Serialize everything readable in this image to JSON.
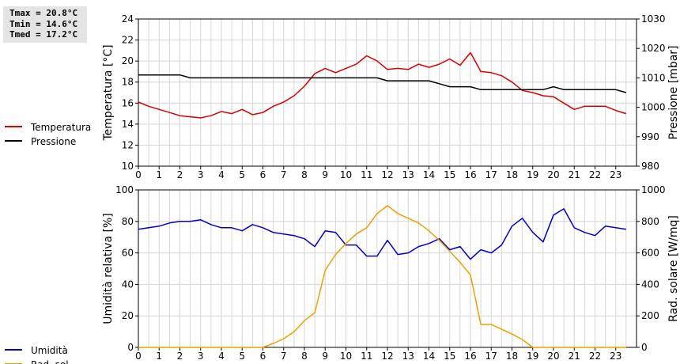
{
  "stats": {
    "tmax": "Tmax = 20.8°C",
    "tmin": "Tmin = 14.6°C",
    "tmed": "Tmed = 17.2°C"
  },
  "chart_data": [
    {
      "type": "line",
      "xlim": [
        0,
        24
      ],
      "x_ticks": [
        "0",
        "1",
        "2",
        "3",
        "4",
        "5",
        "6",
        "7",
        "8",
        "9",
        "10",
        "11",
        "12",
        "13",
        "14",
        "15",
        "16",
        "17",
        "18",
        "19",
        "20",
        "21",
        "22",
        "23"
      ],
      "ylabel": "Temperatura [°C]",
      "ylim": [
        10,
        24
      ],
      "y_ticks": [
        "10",
        "12",
        "14",
        "16",
        "18",
        "20",
        "22",
        "24"
      ],
      "ylabel_right": "Pressione [mbar]",
      "ylim_right": [
        980,
        1030
      ],
      "y_ticks_right": [
        "980",
        "990",
        "1000",
        "1010",
        "1020",
        "1030"
      ],
      "grid": true,
      "legend": "left",
      "series": [
        {
          "name": "Temperatura",
          "axis": "left",
          "color": "#dd0000",
          "x": [
            0,
            0.5,
            1,
            1.5,
            2,
            2.5,
            3,
            3.5,
            4,
            4.5,
            5,
            5.5,
            6,
            6.5,
            7,
            7.5,
            8,
            8.5,
            9,
            9.5,
            10,
            10.5,
            11,
            11.5,
            12,
            12.5,
            13,
            13.5,
            14,
            14.5,
            15,
            15.5,
            16,
            16.5,
            17,
            17.5,
            18,
            18.5,
            19,
            19.5,
            20,
            20.5,
            21,
            21.5,
            22,
            22.5,
            23,
            23.5
          ],
          "values": [
            16.1,
            15.7,
            15.4,
            15.1,
            14.8,
            14.7,
            14.6,
            14.8,
            15.2,
            15.0,
            15.4,
            14.9,
            15.1,
            15.7,
            16.1,
            16.7,
            17.6,
            18.8,
            19.3,
            18.9,
            19.3,
            19.7,
            20.5,
            20.0,
            19.2,
            19.3,
            19.2,
            19.7,
            19.4,
            19.7,
            20.2,
            19.6,
            20.8,
            19.0,
            18.9,
            18.6,
            18.0,
            17.2,
            17.0,
            16.7,
            16.6,
            16.0,
            15.4,
            15.7,
            15.7,
            15.7,
            15.3,
            15.0
          ]
        },
        {
          "name": "Pressione",
          "axis": "right",
          "color": "#000000",
          "x": [
            0,
            1,
            2,
            2.5,
            3,
            4,
            5,
            6,
            7,
            8,
            9,
            10,
            11,
            11.5,
            12,
            13,
            14,
            14.5,
            15,
            16,
            16.5,
            17,
            18,
            19,
            19.5,
            20,
            20.5,
            21,
            22,
            23,
            23.5
          ],
          "values": [
            1011,
            1011,
            1011,
            1010,
            1010,
            1010,
            1010,
            1010,
            1010,
            1010,
            1010,
            1010,
            1010,
            1010,
            1009,
            1009,
            1009,
            1008,
            1007,
            1007,
            1006,
            1006,
            1006,
            1006,
            1006,
            1007,
            1006,
            1006,
            1006,
            1006,
            1005
          ]
        }
      ]
    },
    {
      "type": "line",
      "xlim": [
        0,
        24
      ],
      "x_ticks": [
        "0",
        "1",
        "2",
        "3",
        "4",
        "5",
        "6",
        "7",
        "8",
        "9",
        "10",
        "11",
        "12",
        "13",
        "14",
        "15",
        "16",
        "17",
        "18",
        "19",
        "20",
        "21",
        "22",
        "23"
      ],
      "ylabel": "Umidità relativa [%]",
      "ylim": [
        0,
        100
      ],
      "y_ticks": [
        "0",
        "20",
        "40",
        "60",
        "80",
        "100"
      ],
      "ylabel_right": "Rad. solare [W/mq]",
      "ylim_right": [
        0,
        1000
      ],
      "y_ticks_right": [
        "0",
        "200",
        "400",
        "600",
        "800",
        "1000"
      ],
      "grid": true,
      "legend": "left",
      "series": [
        {
          "name": "Umidità",
          "axis": "left",
          "color": "#0000cc",
          "x": [
            0,
            0.5,
            1,
            1.5,
            2,
            2.5,
            3,
            3.5,
            4,
            4.5,
            5,
            5.5,
            6,
            6.5,
            7,
            7.5,
            8,
            8.5,
            9,
            9.5,
            10,
            10.5,
            11,
            11.5,
            12,
            12.5,
            13,
            13.5,
            14,
            14.5,
            15,
            15.5,
            16,
            16.5,
            17,
            17.5,
            18,
            18.5,
            19,
            19.5,
            20,
            20.5,
            21,
            21.5,
            22,
            22.5,
            23,
            23.5
          ],
          "values": [
            75,
            76,
            77,
            79,
            80,
            80,
            81,
            78,
            76,
            76,
            74,
            78,
            76,
            73,
            72,
            71,
            69,
            64,
            74,
            73,
            65,
            65,
            58,
            58,
            68,
            59,
            60,
            64,
            66,
            69,
            62,
            64,
            56,
            62,
            60,
            65,
            77,
            82,
            73,
            67,
            84,
            88,
            76,
            73,
            71,
            77,
            76,
            75
          ]
        },
        {
          "name": "Rad. sol.",
          "axis": "right",
          "color": "#f0a000",
          "x": [
            0,
            1,
            2,
            3,
            4,
            5,
            6,
            6.5,
            7,
            7.5,
            8,
            8.5,
            9,
            9.5,
            10,
            10.5,
            11,
            11.5,
            12,
            12.5,
            13,
            13.5,
            14,
            14.5,
            15,
            15.5,
            16,
            16.5,
            17,
            17.5,
            18,
            18.5,
            19,
            19.5,
            20,
            21,
            22,
            23,
            23.5
          ],
          "values": [
            0,
            0,
            0,
            0,
            0,
            0,
            0,
            25,
            55,
            100,
            170,
            220,
            490,
            590,
            660,
            720,
            760,
            850,
            900,
            850,
            820,
            790,
            740,
            680,
            610,
            540,
            460,
            145,
            145,
            115,
            85,
            50,
            0,
            0,
            0,
            0,
            0,
            0,
            0
          ]
        }
      ]
    }
  ]
}
